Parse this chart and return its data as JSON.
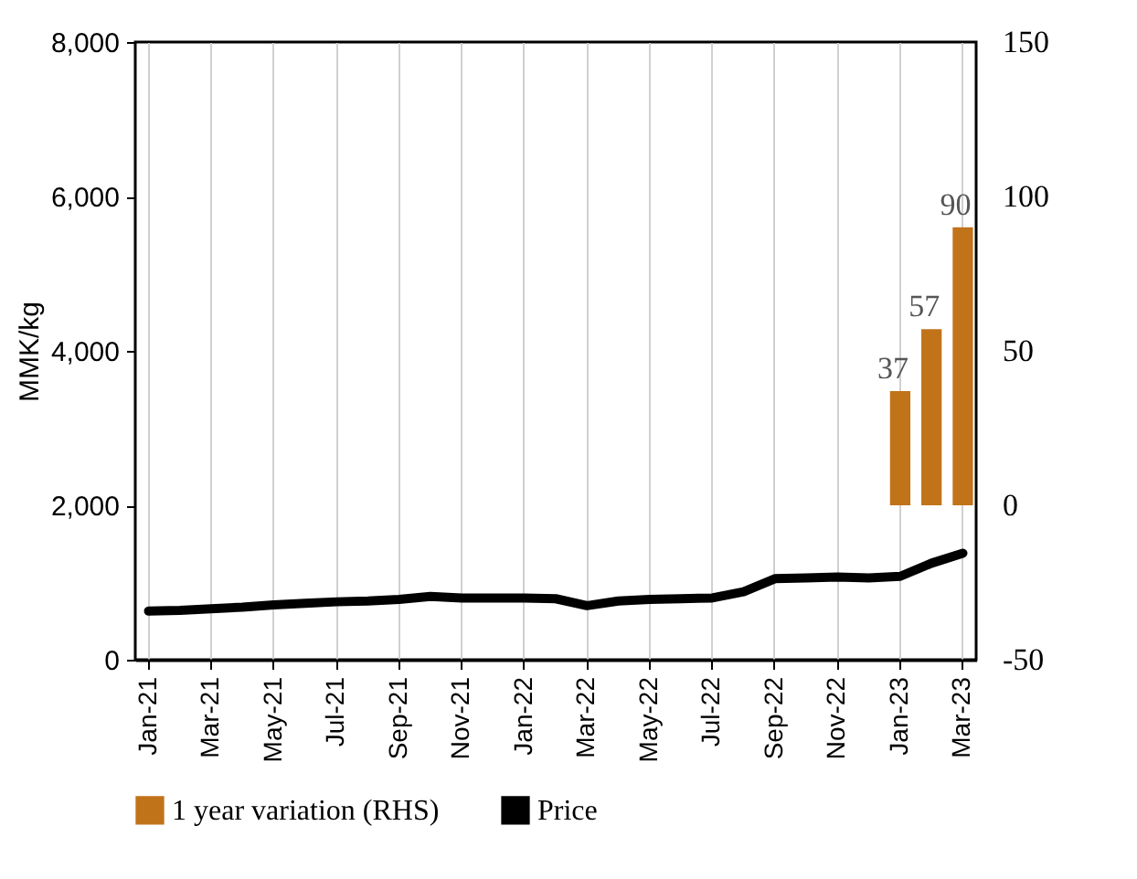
{
  "chart_data": {
    "type": "line",
    "ylabel": "MMK/kg",
    "categories": [
      "Jan-21",
      null,
      "Mar-21",
      null,
      "May-21",
      null,
      "Jul-21",
      null,
      "Sep-21",
      null,
      "Nov-21",
      null,
      "Jan-22",
      null,
      "Mar-22",
      null,
      "May-22",
      null,
      "Jul-22",
      null,
      "Sep-22",
      null,
      "Nov-22",
      null,
      "Jan-23",
      null,
      "Mar-23"
    ],
    "series": [
      {
        "name": "1 year variation (RHS)",
        "type": "bar",
        "axis": "y2",
        "color": "#c1731a",
        "values": [
          null,
          null,
          null,
          null,
          null,
          null,
          null,
          null,
          null,
          null,
          null,
          null,
          null,
          null,
          null,
          null,
          null,
          null,
          null,
          null,
          null,
          null,
          null,
          null,
          37,
          57,
          90
        ],
        "value_labels": [
          null,
          null,
          null,
          null,
          null,
          null,
          null,
          null,
          null,
          null,
          null,
          null,
          null,
          null,
          null,
          null,
          null,
          null,
          null,
          null,
          null,
          null,
          null,
          null,
          "37",
          "57",
          "90"
        ]
      },
      {
        "name": "Price",
        "color": "#000000",
        "values": [
          630,
          640,
          660,
          680,
          710,
          730,
          750,
          760,
          780,
          820,
          800,
          800,
          800,
          790,
          700,
          760,
          780,
          790,
          800,
          880,
          1050,
          1060,
          1070,
          1060,
          1080,
          1250,
          1380
        ]
      }
    ],
    "ylim": [
      0,
      8000
    ],
    "yticks": [
      {
        "value": 0,
        "label": "0"
      },
      {
        "value": 2000,
        "label": "2,000"
      },
      {
        "value": 4000,
        "label": "4,000"
      },
      {
        "value": 6000,
        "label": "6,000"
      },
      {
        "value": 8000,
        "label": "8,000"
      }
    ],
    "y2lim": [
      -50,
      150
    ],
    "y2ticks": [
      -50,
      0,
      50,
      100,
      150
    ],
    "grid": "x",
    "legend": "bottom",
    "line_style": "solid",
    "marker": "none"
  }
}
